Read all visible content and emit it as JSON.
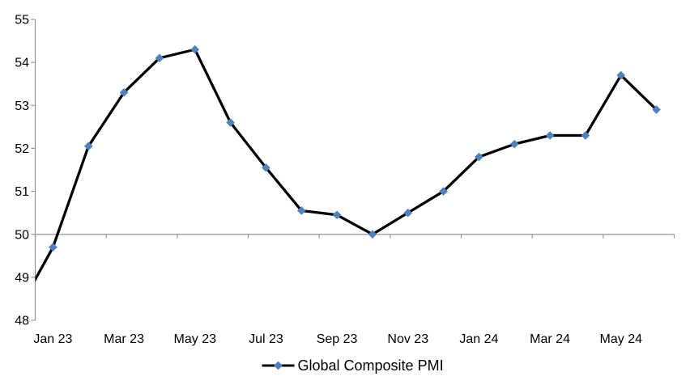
{
  "chart_data": {
    "type": "line",
    "title": "",
    "categories": [
      "Dec 22",
      "Jan 23",
      "Feb 23",
      "Mar 23",
      "Apr 23",
      "May 23",
      "Jun 23",
      "Jul 23",
      "Aug 23",
      "Sep 23",
      "Oct 23",
      "Nov 23",
      "Dec 23",
      "Jan 24",
      "Feb 24",
      "Mar 24",
      "Apr 24",
      "May 24",
      "Jun 24"
    ],
    "series": [
      {
        "name": "Global Composite PMI",
        "values": [
          48.2,
          49.7,
          52.05,
          53.3,
          54.1,
          54.3,
          52.6,
          51.55,
          50.55,
          50.45,
          50.0,
          50.5,
          51.0,
          51.8,
          52.1,
          52.3,
          52.3,
          53.7,
          52.9
        ]
      }
    ],
    "first_point_outside_plot": true,
    "x_tick_labels": [
      "Jan 23",
      "Mar 23",
      "May 23",
      "Jul 23",
      "Sep 23",
      "Nov 23",
      "Jan 24",
      "Mar 24",
      "May 24"
    ],
    "x_tick_label_every_n_categories": 2,
    "ylim": [
      48,
      55
    ],
    "y_step": 1,
    "y_tick_labels": [
      "48",
      "49",
      "50",
      "51",
      "52",
      "53",
      "54",
      "55"
    ],
    "x_axis_crosses_at": 50,
    "grid": "off",
    "legend": [
      "Global Composite PMI"
    ],
    "legend_position": "bottom-center",
    "marker": "diamond",
    "colors": {
      "line": "#000000",
      "marker": "#4F81BD",
      "axis": "#969696",
      "text": "#000000"
    }
  }
}
